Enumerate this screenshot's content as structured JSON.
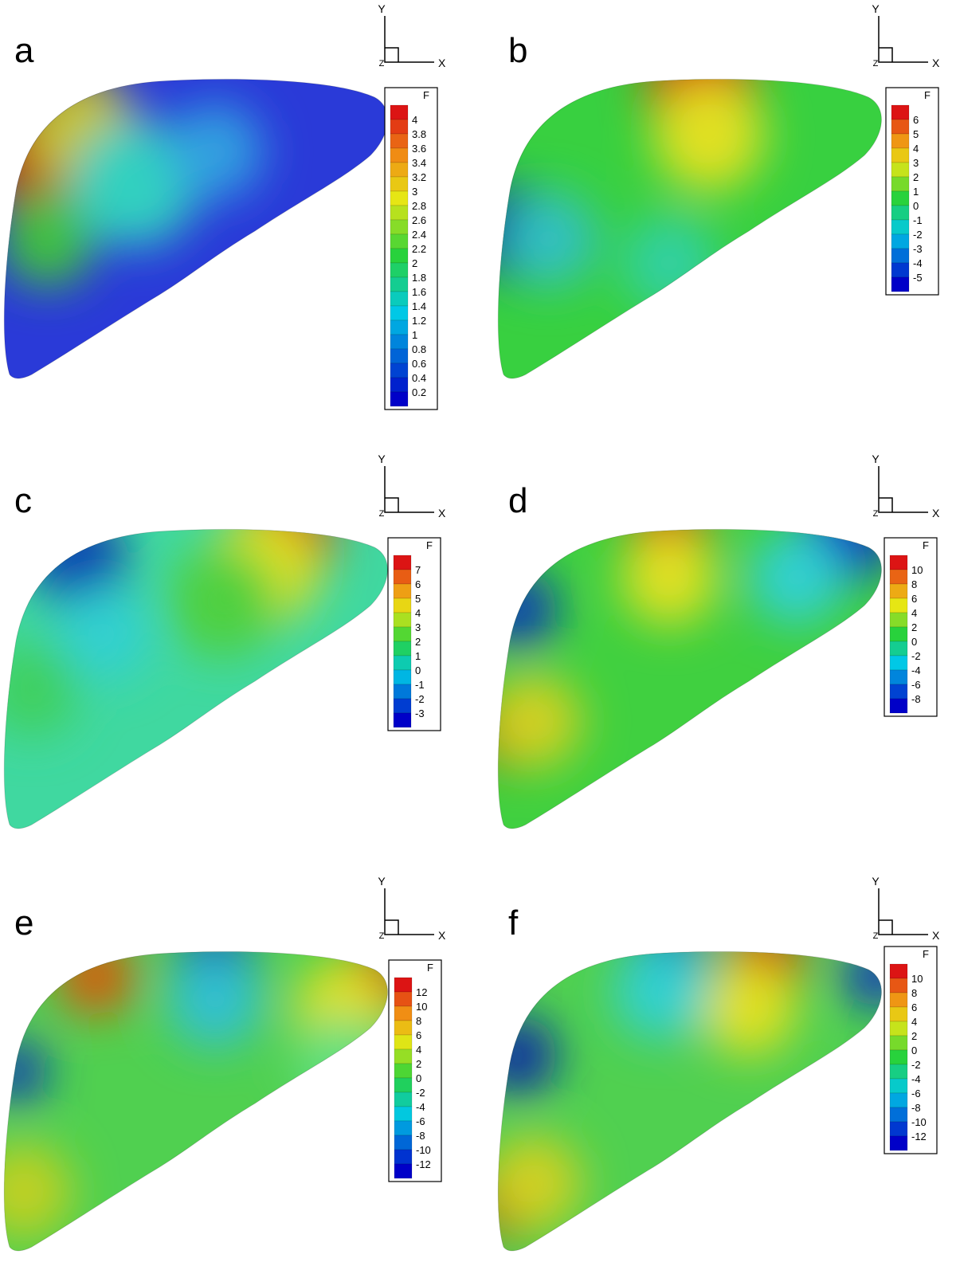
{
  "panels": [
    {
      "label": "a",
      "axes": {
        "x": "X",
        "y": "Y",
        "z": "Z"
      },
      "legend": {
        "title": "F",
        "ticks": [
          4,
          3.8,
          3.6,
          3.4,
          3.2,
          3,
          2.8,
          2.6,
          2.4,
          2.2,
          2,
          1.8,
          1.6,
          1.4,
          1.2,
          1,
          0.8,
          0.6,
          0.4,
          0.2
        ]
      }
    },
    {
      "label": "b",
      "axes": {
        "x": "X",
        "y": "Y",
        "z": "Z"
      },
      "legend": {
        "title": "F",
        "ticks": [
          6,
          5,
          4,
          3,
          2,
          1,
          0,
          -1,
          -2,
          -3,
          -4,
          -5
        ]
      }
    },
    {
      "label": "c",
      "axes": {
        "x": "X",
        "y": "Y",
        "z": "Z"
      },
      "legend": {
        "title": "F",
        "ticks": [
          7,
          6,
          5,
          4,
          3,
          2,
          1,
          0,
          -1,
          -2,
          -3
        ]
      }
    },
    {
      "label": "d",
      "axes": {
        "x": "X",
        "y": "Y",
        "z": "Z"
      },
      "legend": {
        "title": "F",
        "ticks": [
          10,
          8,
          6,
          4,
          2,
          0,
          -2,
          -4,
          -6,
          -8
        ]
      }
    },
    {
      "label": "e",
      "axes": {
        "x": "X",
        "y": "Y",
        "z": "Z"
      },
      "legend": {
        "title": "F",
        "ticks": [
          12,
          10,
          8,
          6,
          4,
          2,
          0,
          -2,
          -4,
          -6,
          -8,
          -10,
          -12
        ]
      }
    },
    {
      "label": "f",
      "axes": {
        "x": "X",
        "y": "Y",
        "z": "Z"
      },
      "legend": {
        "title": "F",
        "ticks": [
          10,
          8,
          6,
          4,
          2,
          0,
          -2,
          -4,
          -6,
          -8,
          -10,
          -12
        ]
      }
    }
  ]
}
